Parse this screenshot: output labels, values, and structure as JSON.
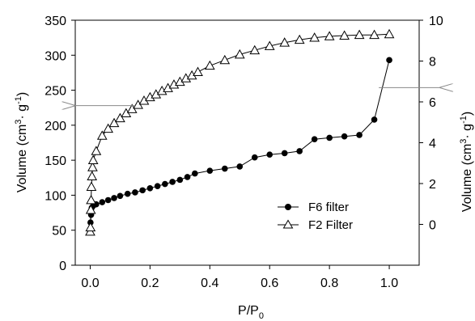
{
  "chart_data": {
    "type": "scatter",
    "xlabel": "P/P",
    "xlabel_sub": "0",
    "ylabel_left": {
      "pre": "Volume (cm",
      "sup1": "3",
      "mid": "· g",
      "sup2": "-1",
      "post": ")"
    },
    "ylabel_right": {
      "pre": "Volume (cm",
      "sup1": "3",
      "mid": "· g",
      "sup2": "-1",
      "post": ")"
    },
    "x_ticks": [
      "0.0",
      "0.2",
      "0.4",
      "0.6",
      "0.8",
      "1.0"
    ],
    "y_left_ticks": [
      "0",
      "50",
      "100",
      "150",
      "200",
      "250",
      "300",
      "350"
    ],
    "y_right_ticks": [
      "0",
      "2",
      "4",
      "6",
      "8",
      "10"
    ],
    "xlim": [
      -0.05,
      1.1
    ],
    "y_left_lim": [
      0,
      350
    ],
    "y_right_lim": [
      -2,
      10
    ],
    "legend_position": "center-right",
    "arrows": [
      {
        "points_to": "left axis",
        "at_y": 228
      },
      {
        "points_to": "right axis",
        "at_y": 6.7
      }
    ],
    "series": [
      {
        "name": "F6 filter",
        "marker": "filled-circle",
        "axis": "left",
        "x": [
          0.001,
          0.003,
          0.005,
          0.01,
          0.02,
          0.04,
          0.06,
          0.08,
          0.1,
          0.125,
          0.15,
          0.175,
          0.2,
          0.225,
          0.25,
          0.275,
          0.3,
          0.325,
          0.35,
          0.4,
          0.45,
          0.5,
          0.55,
          0.6,
          0.65,
          0.7,
          0.75,
          0.8,
          0.85,
          0.9,
          0.95,
          1.0
        ],
        "y": [
          61,
          72,
          82,
          85,
          87,
          90,
          93,
          96,
          99,
          102,
          104,
          107,
          110,
          113,
          116,
          119,
          122,
          126,
          131,
          135,
          138,
          141,
          154,
          158,
          160,
          163,
          180,
          182,
          184,
          186,
          208,
          293
        ]
      },
      {
        "name": "F2 Filter",
        "marker": "open-triangle",
        "axis": "left",
        "x": [
          0.0,
          0.001,
          0.002,
          0.003,
          0.004,
          0.006,
          0.008,
          0.01,
          0.02,
          0.04,
          0.06,
          0.08,
          0.1,
          0.12,
          0.14,
          0.16,
          0.18,
          0.2,
          0.22,
          0.24,
          0.26,
          0.28,
          0.3,
          0.32,
          0.34,
          0.36,
          0.4,
          0.45,
          0.5,
          0.55,
          0.6,
          0.65,
          0.7,
          0.75,
          0.8,
          0.85,
          0.9,
          0.95,
          1.0
        ],
        "y": [
          48,
          54,
          79,
          93,
          112,
          127,
          140,
          150,
          163,
          185,
          195,
          203,
          210,
          217,
          223,
          229,
          235,
          240,
          244,
          249,
          253,
          258,
          262,
          267,
          271,
          276,
          285,
          293,
          301,
          307,
          313,
          318,
          322,
          325,
          327,
          328,
          329,
          329,
          330
        ]
      }
    ]
  }
}
